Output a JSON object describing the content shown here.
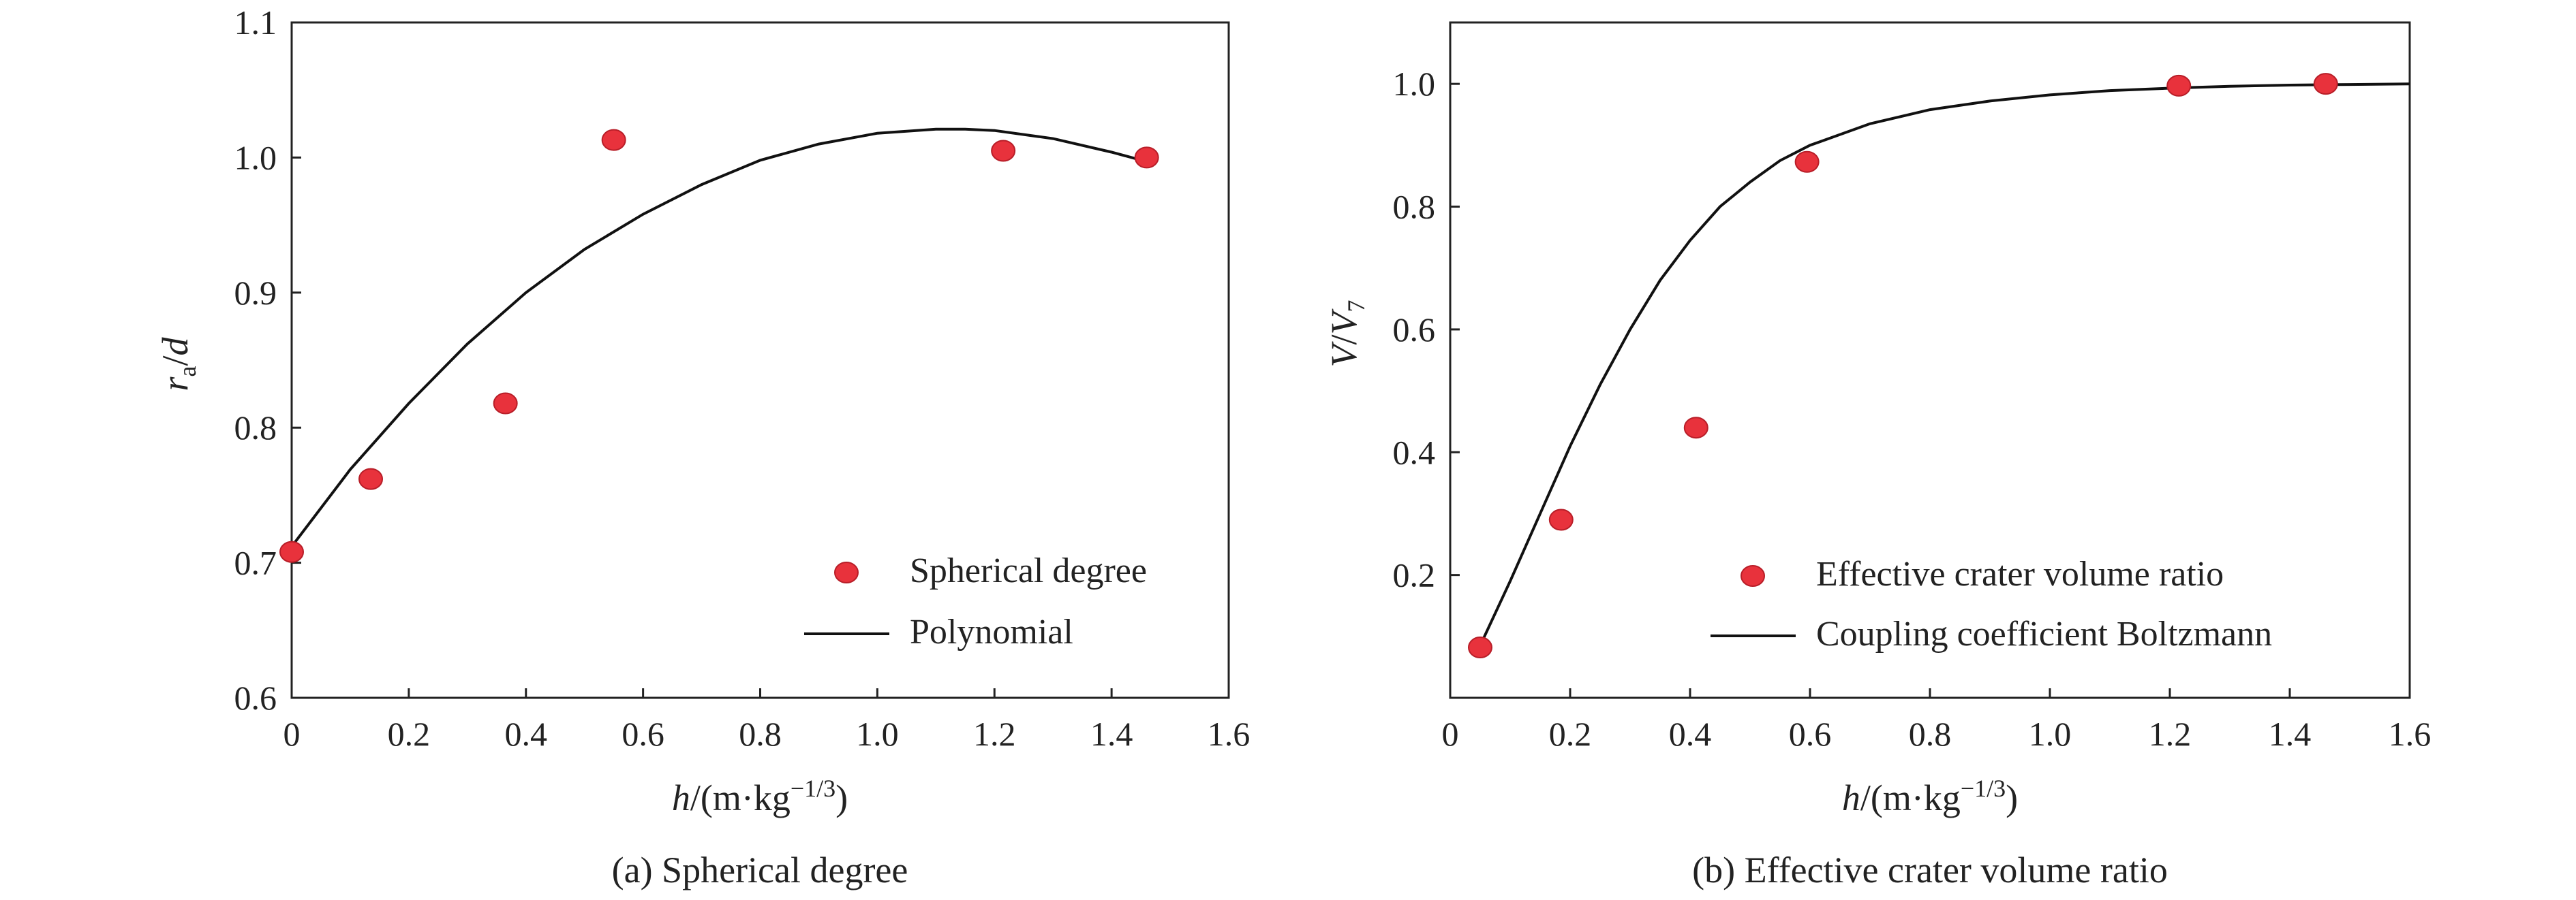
{
  "figure": {
    "captions": [
      "(a) Spherical degree",
      "(b) Effective crater volume ratio"
    ]
  },
  "colors": {
    "marker_fill": "#e8323c",
    "marker_stroke": "#b81e28",
    "line": "#111111",
    "axis": "#222222",
    "background": "#ffffff"
  },
  "chart_data": [
    {
      "type": "scatter",
      "title": "",
      "xlabel": "h/(m·kg−1/3)",
      "ylabel": "ra/d",
      "xlim": [
        0,
        1.6
      ],
      "ylim": [
        0.6,
        1.1
      ],
      "x_ticks": [
        "0",
        "0.2",
        "0.4",
        "0.6",
        "0.8",
        "1.0",
        "1.2",
        "1.4",
        "1.6"
      ],
      "y_ticks": [
        "0.6",
        "0.7",
        "0.8",
        "0.9",
        "1.0",
        "1.1"
      ],
      "grid": false,
      "legend_position": "bottom-right",
      "series": [
        {
          "name": "Spherical degree",
          "kind": "markers",
          "x": [
            0,
            0.135,
            0.365,
            0.55,
            1.215,
            1.46
          ],
          "y": [
            0.708,
            0.762,
            0.818,
            1.013,
            1.005,
            1.0
          ]
        },
        {
          "name": "Polynomial",
          "kind": "line",
          "x": [
            0,
            0.1,
            0.2,
            0.3,
            0.4,
            0.5,
            0.6,
            0.7,
            0.8,
            0.9,
            1.0,
            1.1,
            1.15,
            1.2,
            1.3,
            1.4,
            1.46
          ],
          "y": [
            0.712,
            0.769,
            0.818,
            0.862,
            0.9,
            0.932,
            0.958,
            0.98,
            0.998,
            1.01,
            1.018,
            1.021,
            1.021,
            1.02,
            1.014,
            1.004,
            0.997
          ]
        }
      ]
    },
    {
      "type": "scatter",
      "title": "",
      "xlabel": "h/(m·kg−1/3)",
      "ylabel": "V/V7",
      "xlim": [
        0,
        1.6
      ],
      "ylim": [
        0,
        1.1
      ],
      "x_ticks": [
        "0",
        "0.2",
        "0.4",
        "0.6",
        "0.8",
        "1.0",
        "1.2",
        "1.4",
        "1.6"
      ],
      "y_ticks": [
        "0.2",
        "0.4",
        "0.6",
        "0.8",
        "1.0"
      ],
      "grid": false,
      "legend_position": "bottom-right",
      "series": [
        {
          "name": "Effective crater volume ratio",
          "kind": "markers",
          "x": [
            0.05,
            0.185,
            0.41,
            0.595,
            1.215,
            1.46
          ],
          "y": [
            0.082,
            0.29,
            0.44,
            0.873,
            0.997,
            1.0
          ]
        },
        {
          "name": "Coupling coefficient Boltzmann",
          "kind": "line",
          "x": [
            0.05,
            0.1,
            0.15,
            0.2,
            0.25,
            0.3,
            0.35,
            0.4,
            0.45,
            0.5,
            0.55,
            0.6,
            0.7,
            0.8,
            0.9,
            1.0,
            1.1,
            1.2,
            1.3,
            1.4,
            1.5,
            1.6
          ],
          "y": [
            0.085,
            0.19,
            0.3,
            0.41,
            0.51,
            0.6,
            0.68,
            0.745,
            0.8,
            0.84,
            0.875,
            0.9,
            0.935,
            0.958,
            0.972,
            0.982,
            0.989,
            0.993,
            0.996,
            0.998,
            0.999,
            1.0
          ]
        }
      ]
    }
  ]
}
